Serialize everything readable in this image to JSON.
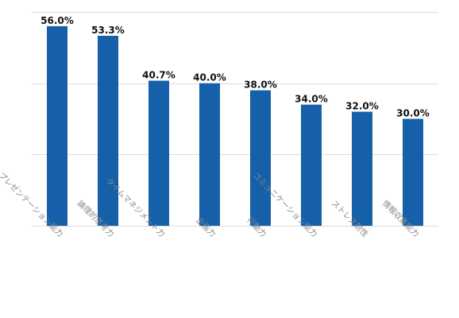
{
  "chart_data": {
    "type": "bar",
    "title": "",
    "xlabel": "",
    "ylabel": "",
    "categories": [
      "プレゼンテーション能力",
      "論理的思考力",
      "タイムマネジメント力",
      "企画力",
      "行動力",
      "コミュニケーション能力",
      "ストレス耐性",
      "情報収集能力"
    ],
    "values": [
      56.0,
      53.3,
      40.7,
      40.0,
      38.0,
      34.0,
      32.0,
      30.0
    ],
    "data_labels": [
      "56.0%",
      "53.3%",
      "40.7%",
      "40.0%",
      "38.0%",
      "34.0%",
      "32.0%",
      "30.0%"
    ],
    "ylim": [
      0,
      60
    ],
    "grid": true,
    "legend": "none",
    "bar_color": "#1560a8",
    "grid_color": "#dcdcdc"
  }
}
